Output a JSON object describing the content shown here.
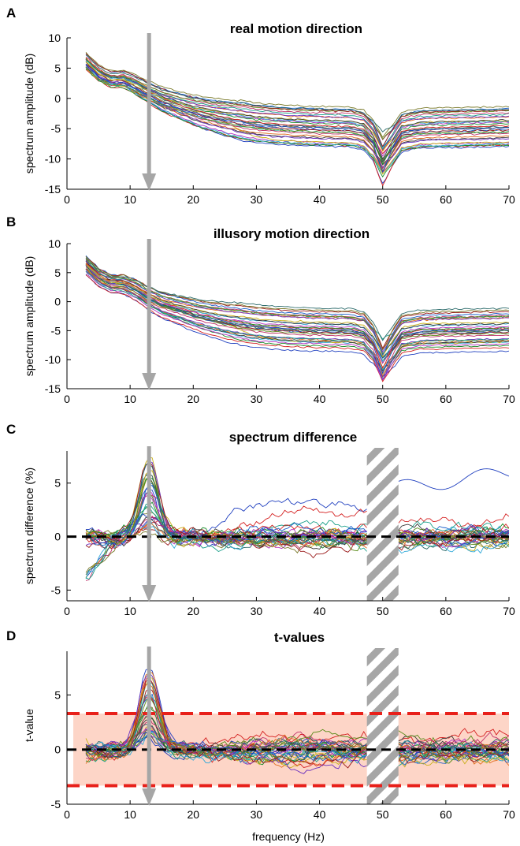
{
  "figure": {
    "xlabel": "frequency (Hz)"
  },
  "chart_data": [
    {
      "panel": "A",
      "type": "line",
      "title": "real motion direction",
      "xlabel": "",
      "ylabel": "spectrum amplitude (dB)",
      "xlim": [
        0,
        70
      ],
      "ylim": [
        -15,
        10
      ],
      "xticks": [
        0,
        10,
        20,
        30,
        40,
        50,
        60,
        70
      ],
      "yticks": [
        -15,
        -10,
        -5,
        0,
        5,
        10
      ],
      "grid": false,
      "series_count": 32,
      "template": {
        "x": [
          3,
          5,
          7,
          9,
          11,
          13,
          15,
          18,
          21,
          25,
          30,
          35,
          40,
          45,
          47,
          48.5,
          50,
          51.5,
          53,
          56,
          60,
          65,
          70
        ],
        "mean": [
          6,
          4,
          3,
          3,
          2,
          0.8,
          -0.3,
          -1.4,
          -2.4,
          -3.3,
          -4.1,
          -4.5,
          -4.7,
          -4.8,
          -5.3,
          -7.0,
          -10.5,
          -8.0,
          -5.6,
          -5.0,
          -4.9,
          -4.8,
          -4.7
        ]
      },
      "arrow": {
        "x": 13,
        "color": "#a6a6a6"
      },
      "notch": {
        "x": 50
      }
    },
    {
      "panel": "B",
      "type": "line",
      "title": "illusory motion direction",
      "xlabel": "",
      "ylabel": "spectrum amplitude (dB)",
      "xlim": [
        0,
        70
      ],
      "ylim": [
        -15,
        10
      ],
      "xticks": [
        0,
        10,
        20,
        30,
        40,
        50,
        60,
        70
      ],
      "yticks": [
        -15,
        -10,
        -5,
        0,
        5,
        10
      ],
      "grid": false,
      "series_count": 32,
      "template": {
        "x": [
          3,
          5,
          7,
          9,
          11,
          13,
          15,
          18,
          21,
          25,
          30,
          35,
          40,
          45,
          47,
          48.5,
          50,
          51.5,
          53,
          56,
          60,
          65,
          70
        ],
        "mean": [
          6.3,
          4.2,
          3.1,
          3,
          2,
          0.6,
          -0.5,
          -1.5,
          -2.5,
          -3.4,
          -4.2,
          -4.6,
          -4.8,
          -4.9,
          -5.4,
          -7.2,
          -10.8,
          -8.2,
          -5.7,
          -5.1,
          -5.0,
          -4.9,
          -4.8
        ]
      },
      "arrow": {
        "x": 13,
        "color": "#a6a6a6"
      },
      "notch": {
        "x": 50
      }
    },
    {
      "panel": "C",
      "type": "line",
      "title": "spectrum difference",
      "xlabel": "",
      "ylabel": "spectrum difference (%)",
      "xlim": [
        0,
        70
      ],
      "ylim": [
        -6,
        8
      ],
      "xticks": [
        0,
        10,
        20,
        30,
        40,
        50,
        60,
        70
      ],
      "yticks": [
        -5,
        0,
        5
      ],
      "grid": false,
      "series_count": 32,
      "peak": {
        "x": 13,
        "max": 7.8
      },
      "excluded_band": [
        47.5,
        52.5
      ],
      "zero_line": {
        "y": 0,
        "style": "dashed",
        "color": "#000000"
      },
      "arrow": {
        "x": 13,
        "color": "#a6a6a6"
      }
    },
    {
      "panel": "D",
      "type": "line",
      "title": "t-values",
      "xlabel": "frequency (Hz)",
      "ylabel": "t-value",
      "xlim": [
        0,
        70
      ],
      "ylim": [
        -5,
        9
      ],
      "xticks": [
        0,
        10,
        20,
        30,
        40,
        50,
        60,
        70
      ],
      "yticks": [
        -5,
        0,
        5
      ],
      "grid": false,
      "series_count": 32,
      "peak": {
        "x": 13,
        "max": 8.0
      },
      "excluded_band": [
        47.5,
        52.5
      ],
      "zero_line": {
        "y": 0,
        "style": "dashed",
        "color": "#000000"
      },
      "significance_band": {
        "upper": 3.3,
        "lower": -3.3,
        "fill": "#fdd5c7",
        "line_color": "#e8201a",
        "style": "dashed"
      },
      "arrow": {
        "x": 13,
        "color": "#a6a6a6"
      }
    }
  ],
  "series_colors": [
    "#1f3fbf",
    "#d42020",
    "#1a8f2a",
    "#b02fc0",
    "#2ea8d8",
    "#c9b01a",
    "#3a3a3a",
    "#e06a1a",
    "#6a2fbf",
    "#1aa08a",
    "#c0306a",
    "#5b8c1a",
    "#1a5fc9",
    "#9a1a1a",
    "#7a7a2a",
    "#2a6a6a"
  ],
  "panels_text": {
    "A": {
      "letter": "A",
      "title": "real motion direction",
      "ylabel": "spectrum amplitude (dB)"
    },
    "B": {
      "letter": "B",
      "title": "illusory motion direction",
      "ylabel": "spectrum amplitude (dB)"
    },
    "C": {
      "letter": "C",
      "title": "spectrum difference",
      "ylabel": "spectrum difference (%)"
    },
    "D": {
      "letter": "D",
      "title": "t-values",
      "ylabel": "t-value"
    }
  },
  "tick_text": {
    "x": [
      "0",
      "10",
      "20",
      "30",
      "40",
      "50",
      "60",
      "70"
    ],
    "ab_y": [
      "10",
      "5",
      "0",
      "-5",
      "-10",
      "-15"
    ],
    "cd_y": [
      "5",
      "0",
      "-5"
    ]
  }
}
